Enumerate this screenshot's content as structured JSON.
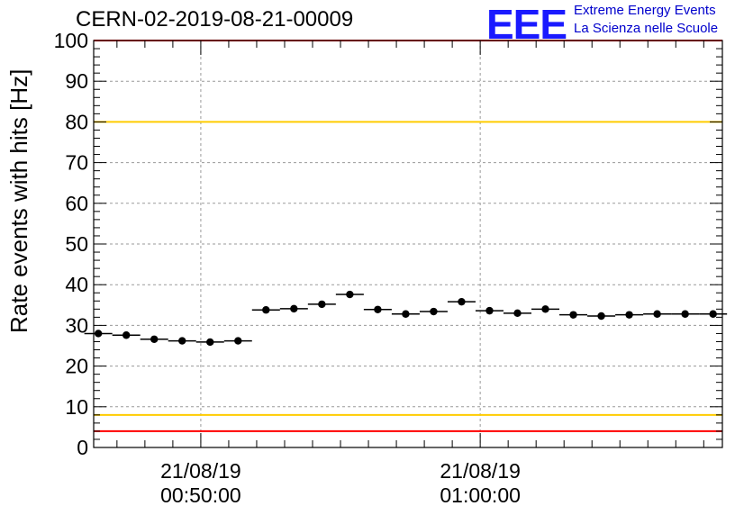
{
  "header": {
    "title": "CERN-02-2019-08-21-00009",
    "logo_text": "EEE",
    "logo_line1": "Extreme Energy Events",
    "logo_line2": "La Scienza nelle Scuole"
  },
  "colors": {
    "logo": "#1a1aff",
    "red_limit": "#ff0000",
    "yellow_limit": "#ffcc00",
    "points": "#000000"
  },
  "chart_data": {
    "type": "scatter",
    "title": "CERN-02-2019-08-21-00009",
    "xlabel": "",
    "ylabel": "Rate events with hits [Hz]",
    "ylim": [
      0,
      100
    ],
    "xlim": [
      "21/08/19 00:46:10",
      "21/08/19 01:08:40"
    ],
    "x_ticks": [
      {
        "x": "21/08/19 00:50:00",
        "date": "21/08/19",
        "time": "00:50:00"
      },
      {
        "x": "21/08/19 01:00:00",
        "date": "21/08/19",
        "time": "01:00:00"
      }
    ],
    "y_ticks": [
      0,
      10,
      20,
      30,
      40,
      50,
      60,
      70,
      80,
      90,
      100
    ],
    "grid": true,
    "reference_lines": [
      {
        "y": 4,
        "color": "red"
      },
      {
        "y": 8,
        "color": "yellow"
      },
      {
        "y": 80,
        "color": "yellow"
      },
      {
        "y": 100,
        "color": "red"
      }
    ],
    "series": [
      {
        "x": [
          "00:46:20",
          "00:47:20",
          "00:48:20",
          "00:49:20",
          "00:50:20",
          "00:51:20",
          "00:52:20",
          "00:53:20",
          "00:54:20",
          "00:55:20",
          "00:56:20",
          "00:57:20",
          "00:58:20",
          "00:59:20",
          "01:00:20",
          "01:01:20",
          "01:02:20",
          "01:03:20",
          "01:04:20",
          "01:05:20",
          "01:06:20",
          "01:07:20",
          "01:08:20"
        ],
        "values": [
          28.0,
          27.6,
          26.6,
          26.2,
          25.9,
          26.2,
          33.8,
          34.1,
          35.2,
          37.6,
          33.9,
          32.8,
          33.4,
          35.8,
          33.6,
          33.0,
          34.0,
          32.6,
          32.3,
          32.6,
          32.8,
          32.8,
          32.8
        ]
      }
    ]
  }
}
